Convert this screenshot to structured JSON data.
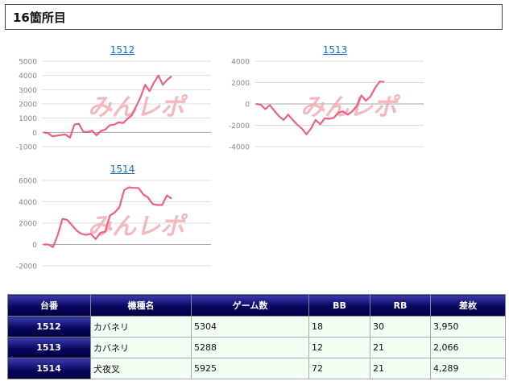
{
  "page_title": "16箇所目",
  "watermark": "みんレポ",
  "colors": {
    "line": "#f06080",
    "axis_text": "#888888",
    "grid": "#dddddd",
    "link": "#1a6fc4"
  },
  "chart_data": [
    {
      "type": "line",
      "title": "1512",
      "ylim": [
        -1000,
        5000
      ],
      "yticks": [
        -1000,
        0,
        1000,
        2000,
        3000,
        4000,
        5000
      ],
      "values": [
        0,
        -50,
        -280,
        -230,
        -180,
        -150,
        -380,
        550,
        600,
        50,
        20,
        120,
        -200,
        100,
        200,
        500,
        550,
        700,
        650,
        950,
        1200,
        1850,
        2500,
        3350,
        2900,
        3500,
        4000,
        3350,
        3700,
        3950
      ]
    },
    {
      "type": "line",
      "title": "1513",
      "ylim": [
        -4000,
        4000
      ],
      "yticks": [
        -4000,
        -2000,
        0,
        2000,
        4000
      ],
      "values": [
        0,
        -80,
        -480,
        -120,
        -650,
        -1150,
        -1500,
        -1000,
        -1500,
        -1950,
        -2300,
        -2850,
        -2300,
        -1500,
        -1900,
        -1350,
        -1400,
        -1300,
        -800,
        -700,
        -1000,
        -700,
        -200,
        800,
        300,
        700,
        1500,
        2100,
        2066
      ]
    },
    {
      "type": "line",
      "title": "1514",
      "ylim": [
        -2000,
        6000
      ],
      "yticks": [
        -2000,
        0,
        2000,
        4000,
        6000
      ],
      "values": [
        0,
        0,
        -250,
        900,
        2400,
        2300,
        1800,
        1300,
        1000,
        900,
        1000,
        500,
        1100,
        1200,
        2700,
        3000,
        3500,
        5100,
        5350,
        5300,
        5300,
        4700,
        4400,
        3800,
        3700,
        3700,
        4600,
        4289
      ]
    }
  ],
  "table": {
    "headers": [
      "台番",
      "機種名",
      "ゲーム数",
      "BB",
      "RB",
      "差枚"
    ],
    "rows": [
      [
        "1512",
        "カバネリ",
        "5304",
        "18",
        "30",
        "3,950"
      ],
      [
        "1513",
        "カバネリ",
        "5288",
        "12",
        "21",
        "2,066"
      ],
      [
        "1514",
        "犬夜叉",
        "5925",
        "72",
        "21",
        "4,289"
      ]
    ]
  }
}
